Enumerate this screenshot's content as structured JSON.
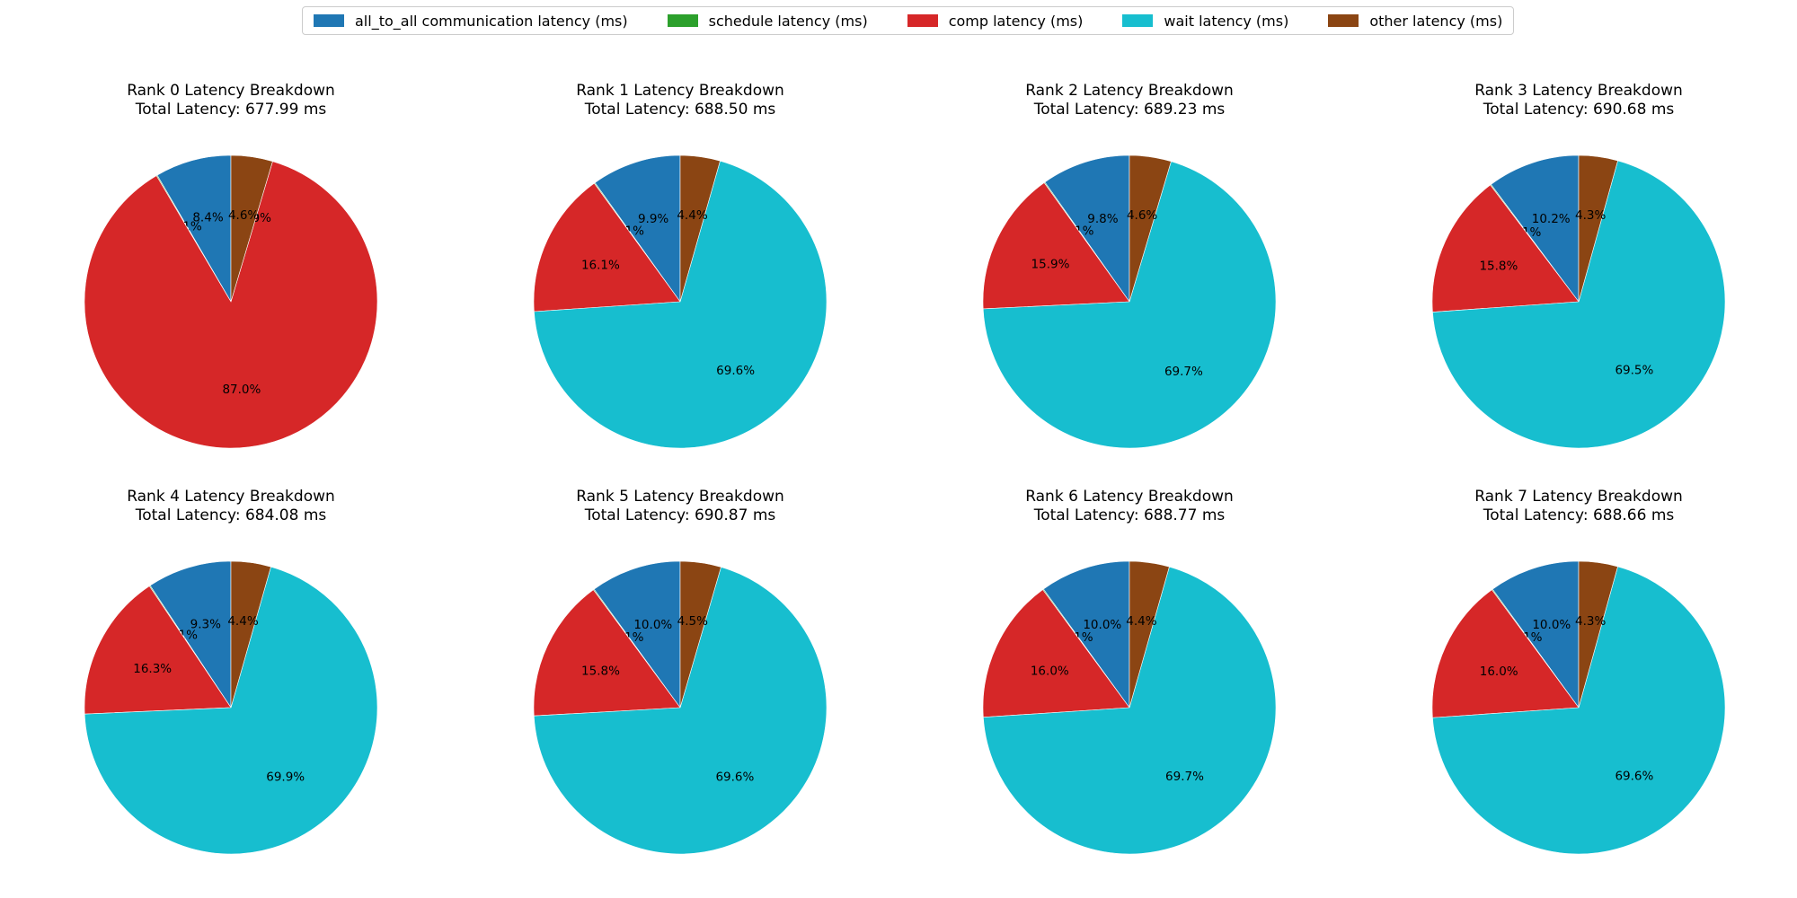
{
  "legend": {
    "placement": "top-center",
    "items": [
      {
        "label": "all_to_all communication latency (ms)",
        "color": "#1f77b4"
      },
      {
        "label": "schedule latency (ms)",
        "color": "#2ca02c"
      },
      {
        "label": "comp latency (ms)",
        "color": "#d62728"
      },
      {
        "label": "wait latency (ms)",
        "color": "#17becf"
      },
      {
        "label": "other latency (ms)",
        "color": "#8b4513"
      }
    ]
  },
  "chart_data": [
    {
      "type": "pie",
      "title": "Rank 0 Latency Breakdown",
      "subtitle": "Total Latency: 677.99 ms",
      "labels": [
        "all_to_all communication latency (ms)",
        "schedule latency (ms)",
        "comp latency (ms)",
        "wait latency (ms)",
        "other latency (ms)"
      ],
      "values": [
        8.4,
        0.1,
        87.0,
        0.0,
        4.6
      ],
      "value_labels": [
        "8.4%",
        "0.1%",
        "87.0%",
        "0.0%",
        "4.6%"
      ]
    },
    {
      "type": "pie",
      "title": "Rank 1 Latency Breakdown",
      "subtitle": "Total Latency: 688.50 ms",
      "labels": [
        "all_to_all communication latency (ms)",
        "schedule latency (ms)",
        "comp latency (ms)",
        "wait latency (ms)",
        "other latency (ms)"
      ],
      "values": [
        9.9,
        0.1,
        16.1,
        69.6,
        4.4
      ],
      "value_labels": [
        "9.9%",
        "0.1%",
        "16.1%",
        "69.6%",
        "4.4%"
      ]
    },
    {
      "type": "pie",
      "title": "Rank 2 Latency Breakdown",
      "subtitle": "Total Latency: 689.23 ms",
      "labels": [
        "all_to_all communication latency (ms)",
        "schedule latency (ms)",
        "comp latency (ms)",
        "wait latency (ms)",
        "other latency (ms)"
      ],
      "values": [
        9.8,
        0.1,
        15.9,
        69.7,
        4.6
      ],
      "value_labels": [
        "9.8%",
        "0.1%",
        "15.9%",
        "69.7%",
        "4.6%"
      ]
    },
    {
      "type": "pie",
      "title": "Rank 3 Latency Breakdown",
      "subtitle": "Total Latency: 690.68 ms",
      "labels": [
        "all_to_all communication latency (ms)",
        "schedule latency (ms)",
        "comp latency (ms)",
        "wait latency (ms)",
        "other latency (ms)"
      ],
      "values": [
        10.2,
        0.1,
        15.8,
        69.5,
        4.3
      ],
      "value_labels": [
        "10.2%",
        "0.1%",
        "15.8%",
        "69.5%",
        "4.3%"
      ]
    },
    {
      "type": "pie",
      "title": "Rank 4 Latency Breakdown",
      "subtitle": "Total Latency: 684.08 ms",
      "labels": [
        "all_to_all communication latency (ms)",
        "schedule latency (ms)",
        "comp latency (ms)",
        "wait latency (ms)",
        "other latency (ms)"
      ],
      "values": [
        9.3,
        0.1,
        16.3,
        69.9,
        4.4
      ],
      "value_labels": [
        "9.3%",
        "0.1%",
        "16.3%",
        "69.9%",
        "4.4%"
      ]
    },
    {
      "type": "pie",
      "title": "Rank 5 Latency Breakdown",
      "subtitle": "Total Latency: 690.87 ms",
      "labels": [
        "all_to_all communication latency (ms)",
        "schedule latency (ms)",
        "comp latency (ms)",
        "wait latency (ms)",
        "other latency (ms)"
      ],
      "values": [
        10.0,
        0.1,
        15.8,
        69.6,
        4.5
      ],
      "value_labels": [
        "10.0%",
        "0.1%",
        "15.8%",
        "69.6%",
        "4.5%"
      ]
    },
    {
      "type": "pie",
      "title": "Rank 6 Latency Breakdown",
      "subtitle": "Total Latency: 688.77 ms",
      "labels": [
        "all_to_all communication latency (ms)",
        "schedule latency (ms)",
        "comp latency (ms)",
        "wait latency (ms)",
        "other latency (ms)"
      ],
      "values": [
        10.0,
        0.1,
        16.0,
        69.7,
        4.4
      ],
      "value_labels": [
        "10.0%",
        "0.1%",
        "16.0%",
        "69.7%",
        "4.4%"
      ]
    },
    {
      "type": "pie",
      "title": "Rank 7 Latency Breakdown",
      "subtitle": "Total Latency: 688.66 ms",
      "labels": [
        "all_to_all communication latency (ms)",
        "schedule latency (ms)",
        "comp latency (ms)",
        "wait latency (ms)",
        "other latency (ms)"
      ],
      "values": [
        10.0,
        0.1,
        16.0,
        69.6,
        4.3
      ],
      "value_labels": [
        "10.0%",
        "0.1%",
        "16.0%",
        "69.6%",
        "4.3%"
      ]
    }
  ]
}
